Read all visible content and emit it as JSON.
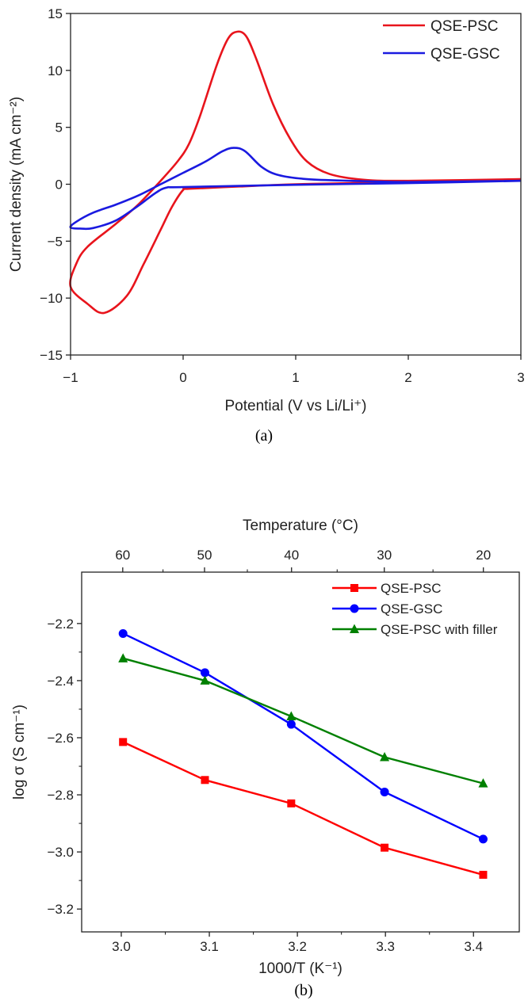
{
  "chart_data": [
    {
      "type": "line",
      "caption": "(a)",
      "title": "",
      "xlabel": "Potential (V vs Li/Li⁺)",
      "ylabel": "Current density (mA cm⁻²)",
      "xlim": [
        -1,
        3
      ],
      "ylim": [
        -15,
        15
      ],
      "xticks": [
        "−1",
        "0",
        "1",
        "2",
        "3"
      ],
      "xtick_values": [
        -1,
        0,
        1,
        2,
        3
      ],
      "yticks": [
        "−15",
        "−10",
        "−5",
        "0",
        "5",
        "10",
        "15"
      ],
      "ytick_values": [
        -15,
        -10,
        -5,
        0,
        5,
        10,
        15
      ],
      "grid": false,
      "legend_position": "top-right",
      "series": [
        {
          "name": "QSE-PSC",
          "color": "#e8141c",
          "points": [
            [
              3,
              0.4
            ],
            [
              2,
              0.2
            ],
            [
              1,
              0
            ],
            [
              0.5,
              -0.2
            ],
            [
              0.05,
              -0.4
            ],
            [
              0,
              -0.5
            ],
            [
              -0.1,
              -2
            ],
            [
              -0.2,
              -4
            ],
            [
              -0.35,
              -7
            ],
            [
              -0.5,
              -9.8
            ],
            [
              -0.7,
              -11.3
            ],
            [
              -0.85,
              -10.5
            ],
            [
              -1,
              -9
            ],
            [
              -0.95,
              -7
            ],
            [
              -0.85,
              -5.5
            ],
            [
              -0.6,
              -3.5
            ],
            [
              -0.4,
              -1.8
            ],
            [
              -0.2,
              0.3
            ],
            [
              -0.05,
              2
            ],
            [
              0.05,
              3.5
            ],
            [
              0.15,
              6
            ],
            [
              0.3,
              10.5
            ],
            [
              0.4,
              12.8
            ],
            [
              0.48,
              13.4
            ],
            [
              0.56,
              13
            ],
            [
              0.65,
              11
            ],
            [
              0.8,
              7
            ],
            [
              0.95,
              4
            ],
            [
              1.1,
              2
            ],
            [
              1.3,
              0.9
            ],
            [
              1.6,
              0.4
            ],
            [
              2,
              0.3
            ],
            [
              3,
              0.45
            ]
          ]
        },
        {
          "name": "QSE-GSC",
          "color": "#1a1ae0",
          "points": [
            [
              3,
              0.3
            ],
            [
              2,
              0.1
            ],
            [
              1,
              -0.05
            ],
            [
              0,
              -0.25
            ],
            [
              -0.15,
              -0.3
            ],
            [
              -0.25,
              -0.8
            ],
            [
              -0.4,
              -1.9
            ],
            [
              -0.6,
              -3.2
            ],
            [
              -0.8,
              -3.85
            ],
            [
              -0.9,
              -3.9
            ],
            [
              -1,
              -3.8
            ],
            [
              -0.95,
              -3.3
            ],
            [
              -0.8,
              -2.5
            ],
            [
              -0.6,
              -1.8
            ],
            [
              -0.4,
              -1
            ],
            [
              -0.2,
              0
            ],
            [
              0,
              1
            ],
            [
              0.2,
              2
            ],
            [
              0.35,
              2.9
            ],
            [
              0.45,
              3.2
            ],
            [
              0.55,
              2.9
            ],
            [
              0.7,
              1.5
            ],
            [
              0.85,
              0.8
            ],
            [
              1.1,
              0.45
            ],
            [
              1.5,
              0.3
            ],
            [
              2,
              0.2
            ],
            [
              3,
              0.3
            ]
          ]
        }
      ]
    },
    {
      "type": "line",
      "caption": "(b)",
      "title": "",
      "xlabel": "1000/T (K⁻¹)",
      "ylabel": "log σ (S cm⁻¹)",
      "top_xlabel": "Temperature (°C)",
      "xlim": [
        2.955,
        3.452
      ],
      "ylim": [
        -3.28,
        -2.02
      ],
      "xticks": [
        "3.0",
        "3.1",
        "3.2",
        "3.3",
        "3.4"
      ],
      "xtick_values": [
        3.0,
        3.1,
        3.2,
        3.3,
        3.4
      ],
      "top_xticks": [
        "60",
        "50",
        "40",
        "30",
        "20"
      ],
      "top_xtick_values": [
        60,
        50,
        40,
        30,
        20
      ],
      "yticks": [
        "−3.2",
        "−3.0",
        "−2.8",
        "−2.6",
        "−2.4",
        "−2.2"
      ],
      "ytick_values": [
        -3.2,
        -3.0,
        -2.8,
        -2.6,
        -2.4,
        -2.2
      ],
      "grid": false,
      "legend_position": "top-right",
      "x": [
        3.002,
        3.095,
        3.193,
        3.299,
        3.411
      ],
      "series": [
        {
          "name": "QSE-PSC",
          "color": "#ff0000",
          "marker": "square",
          "values": [
            -2.615,
            -2.748,
            -2.83,
            -2.985,
            -3.08
          ]
        },
        {
          "name": "QSE-GSC",
          "color": "#0000ff",
          "marker": "circle",
          "values": [
            -2.235,
            -2.372,
            -2.553,
            -2.79,
            -2.955
          ]
        },
        {
          "name": "QSE-PSC with filler",
          "color": "#008000",
          "marker": "triangle",
          "values": [
            -2.322,
            -2.4,
            -2.525,
            -2.668,
            -2.76
          ]
        }
      ]
    }
  ]
}
